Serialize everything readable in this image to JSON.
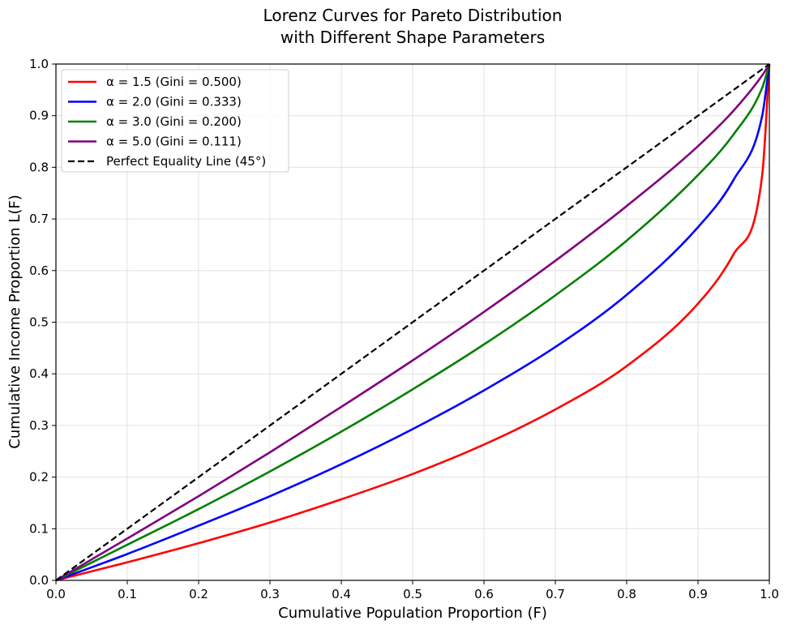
{
  "chart_data": {
    "type": "line",
    "title": [
      "Lorenz Curves for Pareto Distribution",
      "with Different Shape Parameters"
    ],
    "xlabel": "Cumulative Population Proportion (F)",
    "ylabel": "Cumulative Income Proportion L(F)",
    "xlim": [
      0.0,
      1.0
    ],
    "ylim": [
      0.0,
      1.0
    ],
    "xticks": [
      "0.0",
      "0.1",
      "0.2",
      "0.3",
      "0.4",
      "0.5",
      "0.6",
      "0.7",
      "0.8",
      "0.9",
      "1.0"
    ],
    "yticks": [
      "0.0",
      "0.1",
      "0.2",
      "0.3",
      "0.4",
      "0.5",
      "0.6",
      "0.7",
      "0.8",
      "0.9",
      "1.0"
    ],
    "grid": true,
    "legend_position": "top-left",
    "series": [
      {
        "name": "α = 1.5 (Gini = 0.500)",
        "color": "#ff0000",
        "style": "solid",
        "x": [
          0.0,
          0.1,
          0.2,
          0.3,
          0.4,
          0.5,
          0.6,
          0.7,
          0.8,
          0.9,
          0.95,
          0.99,
          1.0
        ],
        "y": [
          0.0,
          0.035,
          0.072,
          0.112,
          0.157,
          0.206,
          0.263,
          0.331,
          0.415,
          0.536,
          0.632,
          0.785,
          1.0
        ]
      },
      {
        "name": "α = 2.0 (Gini = 0.333)",
        "color": "#0000ff",
        "style": "solid",
        "x": [
          0.0,
          0.1,
          0.2,
          0.3,
          0.4,
          0.5,
          0.6,
          0.7,
          0.8,
          0.9,
          0.95,
          0.99,
          1.0
        ],
        "y": [
          0.0,
          0.051,
          0.106,
          0.163,
          0.225,
          0.293,
          0.368,
          0.452,
          0.553,
          0.684,
          0.776,
          0.9,
          1.0
        ]
      },
      {
        "name": "α = 3.0 (Gini = 0.200)",
        "color": "#008000",
        "style": "solid",
        "x": [
          0.0,
          0.1,
          0.2,
          0.3,
          0.4,
          0.5,
          0.6,
          0.7,
          0.8,
          0.9,
          0.95,
          0.99,
          1.0
        ],
        "y": [
          0.0,
          0.069,
          0.138,
          0.211,
          0.288,
          0.37,
          0.457,
          0.552,
          0.658,
          0.785,
          0.864,
          0.954,
          1.0
        ]
      },
      {
        "name": "α = 5.0 (Gini = 0.111)",
        "color": "#800080",
        "style": "solid",
        "x": [
          0.0,
          0.1,
          0.2,
          0.3,
          0.4,
          0.5,
          0.6,
          0.7,
          0.8,
          0.9,
          0.95,
          0.99,
          1.0
        ],
        "y": [
          0.0,
          0.081,
          0.163,
          0.248,
          0.336,
          0.426,
          0.52,
          0.619,
          0.725,
          0.841,
          0.91,
          0.978,
          1.0
        ]
      },
      {
        "name": "Perfect Equality Line (45°)",
        "color": "#000000",
        "style": "dashed",
        "x": [
          0.0,
          1.0
        ],
        "y": [
          0.0,
          1.0
        ]
      }
    ]
  }
}
